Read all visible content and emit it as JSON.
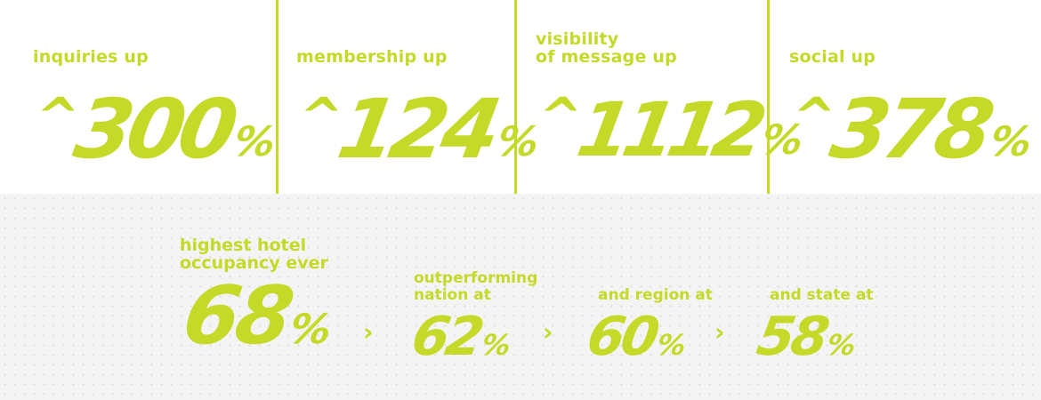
{
  "colors": {
    "accent": "#c5d928",
    "background_top": "#ffffff",
    "background_bottom": "#f4f4f4"
  },
  "stats": [
    {
      "label_lines": [
        "inquiries up"
      ],
      "caret": "^",
      "number": "300",
      "percent": "%"
    },
    {
      "label_lines": [
        "membership up"
      ],
      "caret": "^",
      "number": "124",
      "percent": "%"
    },
    {
      "label_lines": [
        "visibility",
        "of message up"
      ],
      "caret": "^",
      "number": "1112",
      "percent": "%"
    },
    {
      "label_lines": [
        "social up"
      ],
      "caret": "^",
      "number": "378",
      "percent": "%"
    }
  ],
  "occupancy": {
    "main": {
      "label_lines": [
        "highest hotel",
        "occupancy ever"
      ],
      "number": "68",
      "percent": "%"
    },
    "comparisons": [
      {
        "label_lines": [
          "outperforming",
          "nation at"
        ],
        "number": "62",
        "percent": "%"
      },
      {
        "label_lines": [
          "and region at"
        ],
        "number": "60",
        "percent": "%"
      },
      {
        "label_lines": [
          "and state at"
        ],
        "number": "58",
        "percent": "%"
      }
    ],
    "separator_icon": "chevron-right-icon",
    "separator_glyph": "›"
  }
}
